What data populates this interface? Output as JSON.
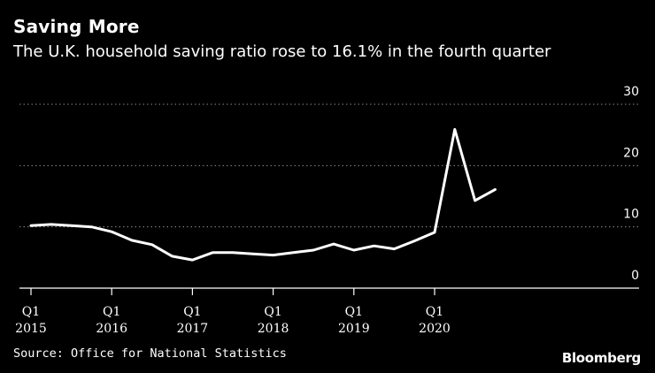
{
  "chart_data": {
    "type": "line",
    "title": "Saving More",
    "subtitle": "The U.K. household saving ratio rose to 16.1% in the fourth quarter",
    "xlabel": "",
    "ylabel": "",
    "ylim": [
      0,
      30
    ],
    "yticks": [
      0,
      10,
      20,
      30
    ],
    "x_tick_labels": [
      {
        "quarter": "Q1",
        "year": "2015"
      },
      {
        "quarter": "Q1",
        "year": "2016"
      },
      {
        "quarter": "Q1",
        "year": "2017"
      },
      {
        "quarter": "Q1",
        "year": "2018"
      },
      {
        "quarter": "Q1",
        "year": "2019"
      },
      {
        "quarter": "Q1",
        "year": "2020"
      }
    ],
    "series": [
      {
        "name": "U.K. household saving ratio",
        "color": "#ffffff",
        "x": [
          "2015 Q1",
          "2015 Q2",
          "2015 Q3",
          "2015 Q4",
          "2016 Q1",
          "2016 Q2",
          "2016 Q3",
          "2016 Q4",
          "2017 Q1",
          "2017 Q2",
          "2017 Q3",
          "2017 Q4",
          "2018 Q1",
          "2018 Q2",
          "2018 Q3",
          "2018 Q4",
          "2019 Q1",
          "2019 Q2",
          "2019 Q3",
          "2019 Q4",
          "2020 Q1",
          "2020 Q2",
          "2020 Q3",
          "2020 Q4"
        ],
        "values": [
          10.2,
          10.4,
          10.2,
          10.0,
          9.2,
          7.8,
          7.1,
          5.2,
          4.6,
          5.8,
          5.8,
          5.6,
          5.4,
          5.8,
          6.2,
          7.2,
          6.2,
          6.9,
          6.4,
          7.7,
          9.1,
          25.9,
          14.3,
          16.1
        ]
      }
    ],
    "grid": true,
    "gridline_color": "#8c8c8c",
    "axis_color": "#ffffff",
    "source": "Source: Office for National Statistics",
    "brand": "Bloomberg"
  }
}
